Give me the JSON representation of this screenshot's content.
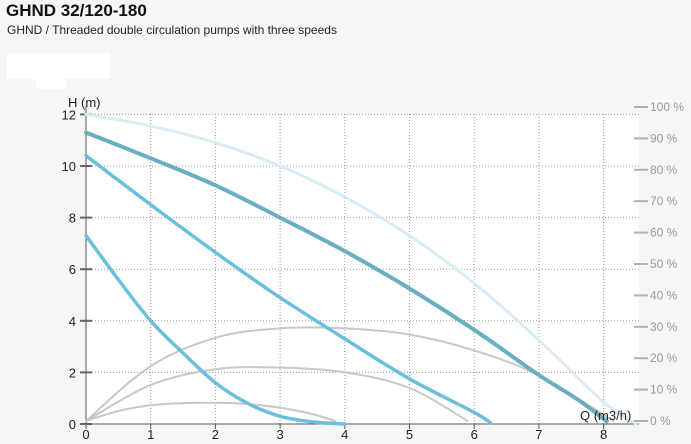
{
  "header": {
    "title": "GHND 32/120-180",
    "subtitle": "GHND / Threaded double circulation pumps with three speeds"
  },
  "chart_data": {
    "type": "line",
    "ylabel": "H (m)",
    "xlabel": "Q (m3/h)",
    "xlim": [
      0,
      8.5
    ],
    "ylim": [
      0,
      12
    ],
    "x_ticks": [
      "0",
      "1",
      "2",
      "3",
      "4",
      "5",
      "6",
      "7",
      "8"
    ],
    "y_ticks": [
      "0",
      "2",
      "4",
      "6",
      "8",
      "10",
      "12"
    ],
    "y2_ticks": [
      "0 %",
      "10 %",
      "20 %",
      "30 %",
      "40 %",
      "50 %",
      "60 %",
      "70 %",
      "80 %",
      "90 %",
      "100 %"
    ],
    "y2lim": [
      0,
      100
    ],
    "grid": true,
    "colors": {
      "speed_high": "#6aaec4",
      "speed_mid": "#6cbfdc",
      "speed_low": "#6cbfdc",
      "envelope": "#d6ecf6",
      "efficiency": "#c8c8c8"
    },
    "series": [
      {
        "axis": "H",
        "x": [
          0,
          1,
          2,
          3,
          4,
          5,
          6,
          7,
          7.6,
          8.05
        ],
        "y": [
          11.3,
          10.3,
          9.25,
          8.0,
          6.7,
          5.25,
          3.65,
          1.9,
          0.95,
          0.1
        ]
      },
      {
        "axis": "H",
        "x": [
          0,
          1,
          2,
          3,
          4,
          5,
          6,
          6.25
        ],
        "y": [
          10.4,
          8.5,
          6.65,
          4.9,
          3.3,
          1.75,
          0.45,
          0.05
        ]
      },
      {
        "axis": "H",
        "x": [
          0,
          0.5,
          1,
          1.5,
          2,
          2.5,
          3,
          3.5,
          4
        ],
        "y": [
          7.3,
          5.6,
          4.0,
          2.75,
          1.6,
          0.8,
          0.3,
          0.08,
          0.0
        ]
      },
      {
        "axis": "H",
        "x": [
          0,
          1,
          2,
          3,
          4,
          5,
          6,
          7,
          8,
          8.5
        ],
        "y": [
          12.0,
          11.55,
          10.9,
          10.0,
          8.8,
          7.3,
          5.45,
          3.25,
          0.85,
          0.0
        ]
      },
      {
        "axis": "eta",
        "x": [
          0,
          1,
          2,
          3,
          4,
          5,
          6,
          7,
          8.15
        ],
        "y": [
          0,
          17.5,
          26.5,
          29.5,
          29.5,
          27.5,
          22.5,
          14.5,
          0
        ]
      },
      {
        "axis": "eta",
        "x": [
          0,
          1,
          2,
          3,
          4,
          5,
          5.9
        ],
        "y": [
          0,
          11.5,
          16.5,
          17.0,
          15.5,
          10.5,
          0
        ]
      },
      {
        "axis": "eta",
        "x": [
          0,
          0.5,
          1,
          1.5,
          2,
          2.5,
          3,
          3.5,
          3.85
        ],
        "y": [
          0,
          3.2,
          5.0,
          5.7,
          5.8,
          5.4,
          4.2,
          2.2,
          0
        ]
      }
    ]
  }
}
